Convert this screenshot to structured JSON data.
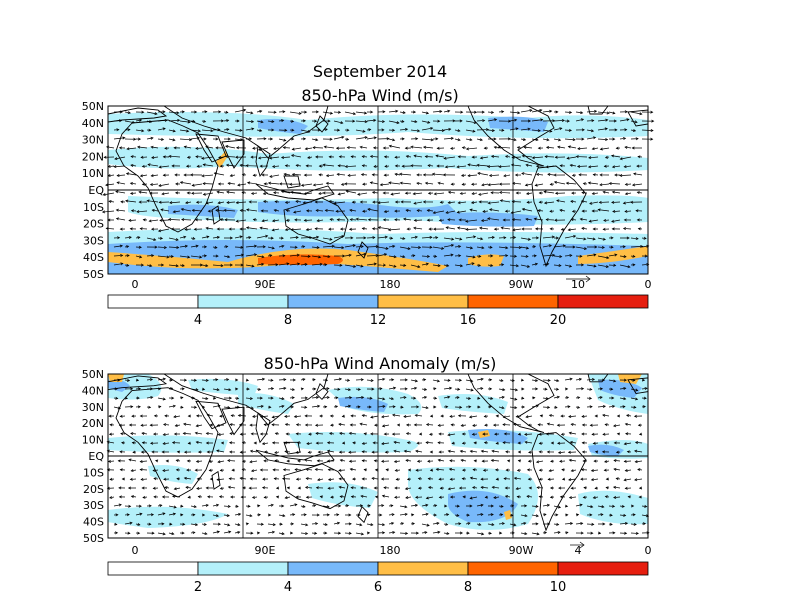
{
  "figure": {
    "title": "September 2014"
  },
  "panels": [
    {
      "id": "wind",
      "title": "850-hPa Wind (m/s)",
      "lat_labels": [
        "50N",
        "40N",
        "30N",
        "20N",
        "10N",
        "EQ",
        "10S",
        "20S",
        "30S",
        "40S",
        "50S"
      ],
      "lon_labels": [
        "0",
        "90E",
        "180",
        "90W",
        "0"
      ],
      "reference_vector": "10",
      "colorbar": {
        "labels": [
          "4",
          "8",
          "12",
          "16",
          "20"
        ],
        "colors": [
          "#ffffff",
          "#b4f0fa",
          "#78b9fa",
          "#ffbe46",
          "#ff6400",
          "#e61e0f"
        ]
      }
    },
    {
      "id": "anomaly",
      "title": "850-hPa Wind Anomaly (m/s)",
      "lat_labels": [
        "50N",
        "40N",
        "30N",
        "20N",
        "10N",
        "EQ",
        "10S",
        "20S",
        "30S",
        "40S",
        "50S"
      ],
      "lon_labels": [
        "0",
        "90E",
        "180",
        "90W",
        "0"
      ],
      "reference_vector": "4",
      "colorbar": {
        "labels": [
          "2",
          "4",
          "6",
          "8",
          "10"
        ],
        "colors": [
          "#ffffff",
          "#b4f0fa",
          "#78b9fa",
          "#ffbe46",
          "#ff6400",
          "#e61e0f"
        ]
      }
    }
  ],
  "map_features": [
    "coastlines-icon",
    "wind-vectors-icon",
    "wind-speed-shading"
  ]
}
